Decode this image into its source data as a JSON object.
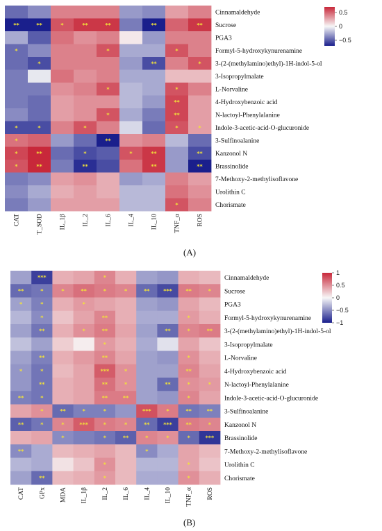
{
  "panel_labels": [
    "(A)",
    "(B)"
  ],
  "chart_data": [
    {
      "type": "heatmap",
      "rows": [
        "Cinnamaldehyde",
        "Sucrose",
        "PGA3",
        "Formyl-5-hydroxykynurenamine",
        "3-(2-(methylamino)ethyl)-1H-indol-5-ol",
        "3-Isopropylmalate",
        "L-Norvaline",
        "4-Hydroxybenzoic acid",
        "N-lactoyl-Phenylalanine",
        "Indole-3-acetic-acid-O-glucuronide",
        "3-Sulfinoalanine",
        "Kanzonol N",
        "Brassinolide",
        "7-Methoxy-2-methylisoflavone",
        "Urolithin C",
        "Chorismate"
      ],
      "columns": [
        "CAT",
        "T_SOD",
        "IL_1β",
        "IL_2",
        "IL_6",
        "IL_4",
        "IL_10",
        "TNF_α",
        "ROS"
      ],
      "colorbar": {
        "ticks": [
          "0.5",
          "0",
          "−0.5"
        ],
        "range": [
          -0.7,
          0.7
        ],
        "low": "#1a1f8c",
        "mid": "#f7f7f7",
        "high": "#c8283a"
      },
      "values": [
        [
          -0.45,
          -0.35,
          0.4,
          0.4,
          0.4,
          -0.3,
          -0.35,
          0.3,
          0.4
        ],
        [
          -0.75,
          -0.75,
          0.55,
          0.65,
          0.65,
          -0.4,
          -0.75,
          0.5,
          0.65
        ],
        [
          -0.25,
          -0.5,
          0.45,
          0.35,
          0.4,
          0.05,
          -0.3,
          0.4,
          0.4
        ],
        [
          -0.45,
          -0.35,
          0.4,
          0.4,
          0.55,
          -0.25,
          -0.25,
          0.55,
          0.4
        ],
        [
          -0.45,
          -0.55,
          0.4,
          0.4,
          0.4,
          -0.3,
          -0.55,
          0.4,
          0.55
        ],
        [
          -0.4,
          -0.05,
          0.45,
          0.35,
          0.4,
          -0.25,
          -0.25,
          0.2,
          0.2
        ],
        [
          -0.4,
          -0.4,
          0.35,
          0.4,
          0.55,
          -0.2,
          -0.25,
          0.55,
          0.4
        ],
        [
          -0.4,
          -0.45,
          0.3,
          0.35,
          0.35,
          -0.2,
          -0.3,
          0.6,
          0.3
        ],
        [
          -0.35,
          -0.45,
          0.3,
          0.35,
          0.55,
          -0.25,
          -0.4,
          0.6,
          0.3
        ],
        [
          -0.55,
          -0.55,
          0.4,
          0.55,
          0.4,
          -0.1,
          -0.45,
          0.55,
          0.3
        ],
        [
          0.45,
          0.5,
          -0.3,
          -0.45,
          -0.75,
          0.35,
          0.4,
          -0.2,
          -0.45
        ],
        [
          0.6,
          0.7,
          -0.45,
          -0.55,
          -0.5,
          0.55,
          0.65,
          -0.3,
          -0.55
        ],
        [
          0.55,
          0.7,
          -0.4,
          -0.65,
          -0.55,
          0.45,
          0.65,
          -0.3,
          -0.75
        ],
        [
          -0.4,
          -0.35,
          0.3,
          0.35,
          0.25,
          -0.3,
          -0.25,
          0.4,
          0.3
        ],
        [
          -0.35,
          -0.25,
          0.25,
          0.3,
          0.25,
          -0.2,
          -0.2,
          0.45,
          0.35
        ],
        [
          -0.4,
          -0.3,
          0.3,
          0.3,
          0.3,
          -0.2,
          -0.2,
          0.55,
          0.4
        ]
      ],
      "stars": [
        [
          "",
          "",
          "",
          "",
          "",
          "",
          "",
          "",
          ""
        ],
        [
          "**",
          "**",
          "*",
          "**",
          "**",
          "",
          "**",
          "",
          "**"
        ],
        [
          "",
          "",
          "",
          "",
          "",
          "",
          "",
          "",
          ""
        ],
        [
          "*",
          "",
          "",
          "",
          "*",
          "",
          "",
          "*",
          ""
        ],
        [
          "",
          "*",
          "",
          "",
          "",
          "",
          "**",
          "",
          "*"
        ],
        [
          "",
          "",
          "",
          "",
          "",
          "",
          "",
          "",
          ""
        ],
        [
          "",
          "",
          "",
          "",
          "*",
          "",
          "",
          "*",
          ""
        ],
        [
          "",
          "",
          "",
          "",
          "",
          "",
          "",
          "**",
          ""
        ],
        [
          "",
          "",
          "",
          "",
          "*",
          "",
          "",
          "**",
          ""
        ],
        [
          "*",
          "*",
          "",
          "*",
          "",
          "",
          "",
          "*",
          "*"
        ],
        [
          "*",
          "",
          "",
          "",
          "**",
          "",
          "",
          "",
          ""
        ],
        [
          "*",
          "**",
          "",
          "*",
          "",
          "*",
          "**",
          "",
          "**"
        ],
        [
          "*",
          "**",
          "",
          "**",
          "",
          "",
          "**",
          "",
          "**"
        ],
        [
          "",
          "",
          "",
          "",
          "",
          "",
          "",
          "",
          ""
        ],
        [
          "",
          "",
          "",
          "",
          "",
          "",
          "",
          "",
          ""
        ],
        [
          "",
          "",
          "",
          "",
          "",
          "",
          "",
          "*",
          ""
        ]
      ]
    },
    {
      "type": "heatmap",
      "rows": [
        "Cinnamaldehyde",
        "Sucrose",
        "PGA3",
        "Formyl-5-hydroxykynurenamine",
        "3-(2-(methylamino)ethyl)-1H-indol-5-ol",
        "3-Isopropylmalate",
        "L-Norvaline",
        "4-Hydroxybenzoic acid",
        "N-lactoyl-Phenylalanine",
        "Indole-3-acetic-acid-O-glucuronide",
        "3-Sulfinoalanine",
        "Kanzonol N",
        "Brassinolide",
        "7-Methoxy-2-methylisoflavone",
        "Urolithin C",
        "Chorismate"
      ],
      "columns": [
        "CAT",
        "GPx",
        "MDA",
        "IL_1β",
        "IL_2",
        "IL_6",
        "IL_4",
        "IL_10",
        "TNF_α",
        "ROS"
      ],
      "colorbar": {
        "ticks": [
          "1",
          "0.5",
          "0",
          "−0.5",
          "−1"
        ],
        "range": [
          -1,
          1
        ],
        "low": "#1a1f8c",
        "mid": "#f7f7f7",
        "high": "#c8283a"
      },
      "values": [
        [
          -0.4,
          -0.85,
          0.35,
          0.4,
          0.55,
          0.35,
          -0.4,
          -0.45,
          0.35,
          0.3
        ],
        [
          -0.65,
          -0.6,
          0.55,
          0.65,
          0.6,
          0.55,
          -0.65,
          -0.8,
          0.6,
          0.55
        ],
        [
          -0.4,
          -0.55,
          0.35,
          0.45,
          0.4,
          0.35,
          -0.4,
          -0.45,
          0.4,
          0.3
        ],
        [
          -0.3,
          -0.5,
          0.25,
          0.4,
          0.55,
          0.35,
          -0.35,
          -0.35,
          0.45,
          0.35
        ],
        [
          -0.4,
          -0.6,
          0.35,
          0.5,
          0.6,
          0.4,
          -0.4,
          -0.65,
          0.55,
          0.6
        ],
        [
          -0.25,
          -0.4,
          0.2,
          0.05,
          0.45,
          0.35,
          -0.35,
          -0.1,
          0.4,
          0.25
        ],
        [
          -0.4,
          -0.55,
          0.35,
          0.45,
          0.55,
          0.4,
          -0.4,
          -0.45,
          0.5,
          0.35
        ],
        [
          -0.45,
          -0.6,
          0.3,
          0.4,
          0.75,
          0.5,
          -0.4,
          -0.4,
          0.55,
          0.4
        ],
        [
          -0.45,
          -0.6,
          0.35,
          0.4,
          0.65,
          0.5,
          -0.4,
          -0.65,
          0.5,
          0.45
        ],
        [
          -0.55,
          -0.6,
          0.35,
          0.4,
          0.6,
          0.6,
          -0.4,
          -0.45,
          0.55,
          0.4
        ],
        [
          0.4,
          0.5,
          -0.65,
          -0.55,
          -0.55,
          -0.45,
          0.8,
          0.6,
          -0.6,
          -0.55
        ],
        [
          -0.7,
          -0.6,
          0.55,
          0.75,
          0.6,
          0.55,
          -0.65,
          -0.85,
          0.6,
          0.55
        ],
        [
          0.35,
          0.4,
          -0.5,
          -0.55,
          -0.6,
          -0.7,
          0.55,
          0.5,
          -0.65,
          -0.9
        ],
        [
          -0.5,
          -0.35,
          0.3,
          0.35,
          0.4,
          0.3,
          -0.5,
          -0.35,
          0.4,
          0.3
        ],
        [
          -0.3,
          -0.35,
          0.1,
          0.25,
          0.5,
          0.3,
          -0.3,
          -0.3,
          0.4,
          0.25
        ],
        [
          -0.4,
          -0.65,
          0.3,
          0.35,
          0.45,
          0.3,
          -0.35,
          -0.35,
          0.5,
          0.35
        ]
      ],
      "stars": [
        [
          "",
          "***",
          "",
          "",
          "*",
          "",
          "",
          "",
          "",
          ""
        ],
        [
          "**",
          "*",
          "*",
          "**",
          "*",
          "*",
          "**",
          "***",
          "**",
          "*"
        ],
        [
          "*",
          "*",
          "",
          "*",
          "",
          "",
          "",
          "",
          "",
          ""
        ],
        [
          "",
          "*",
          "",
          "",
          "**",
          "",
          "",
          "",
          "*",
          ""
        ],
        [
          "",
          "**",
          "",
          "*",
          "**",
          "",
          "",
          "**",
          "*",
          "**"
        ],
        [
          "",
          "",
          "",
          "",
          "*",
          "",
          "",
          "",
          "",
          ""
        ],
        [
          "",
          "**",
          "",
          "",
          "**",
          "",
          "",
          "",
          "*",
          ""
        ],
        [
          "*",
          "*",
          "",
          "",
          "***",
          "*",
          "",
          "",
          "**",
          ""
        ],
        [
          "",
          "**",
          "",
          "",
          "**",
          "*",
          "",
          "**",
          "*",
          "*"
        ],
        [
          "**",
          "*",
          "",
          "",
          "**",
          "**",
          "",
          "",
          "*",
          ""
        ],
        [
          "",
          "*",
          "**",
          "*",
          "*",
          "",
          "***",
          "*",
          "**",
          "**"
        ],
        [
          "**",
          "*",
          "*",
          "***",
          "*",
          "*",
          "**",
          "***",
          "**",
          "*"
        ],
        [
          "",
          "",
          "*",
          "",
          "*",
          "**",
          "*",
          "*",
          "*",
          "***"
        ],
        [
          "**",
          "",
          "",
          "",
          "",
          "",
          "*",
          "",
          "",
          ""
        ],
        [
          "",
          "",
          "",
          "",
          "*",
          "",
          "",
          "",
          "*",
          ""
        ],
        [
          "",
          "**",
          "",
          "",
          "*",
          "",
          "",
          "",
          "*",
          ""
        ]
      ]
    }
  ]
}
